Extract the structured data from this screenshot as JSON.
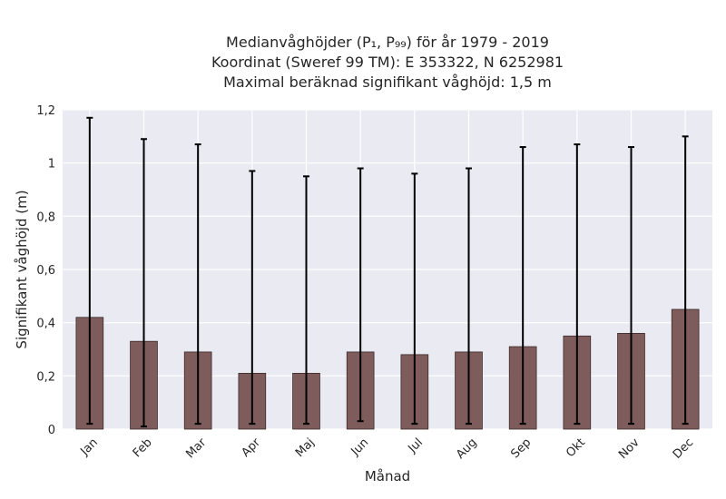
{
  "chart_data": {
    "type": "bar",
    "title_lines": [
      "Medianvåghöjder (P₁, P₉₉) för år 1979 - 2019",
      "Koordinat (Sweref 99 TM): E 353322, N 6252981",
      "Maximal beräknad signifikant våghöjd: 1,5 m"
    ],
    "xlabel": "Månad",
    "ylabel": "Signifikant våghöjd (m)",
    "categories": [
      "Jan",
      "Feb",
      "Mar",
      "Apr",
      "Maj",
      "Jun",
      "Jul",
      "Aug",
      "Sep",
      "Okt",
      "Nov",
      "Dec"
    ],
    "values": [
      0.42,
      0.33,
      0.29,
      0.21,
      0.21,
      0.29,
      0.28,
      0.29,
      0.31,
      0.35,
      0.36,
      0.45
    ],
    "error_low": [
      0.02,
      0.01,
      0.02,
      0.02,
      0.02,
      0.03,
      0.02,
      0.02,
      0.02,
      0.02,
      0.02,
      0.02
    ],
    "error_high": [
      1.17,
      1.09,
      1.07,
      0.97,
      0.95,
      0.98,
      0.96,
      0.98,
      1.06,
      1.07,
      1.06,
      1.1
    ],
    "ylim": [
      0,
      1.2
    ],
    "yticks": [
      0,
      0.2,
      0.4,
      0.6,
      0.8,
      1,
      1.2
    ],
    "ytick_labels": [
      "0",
      "0,2",
      "0,4",
      "0,6",
      "0,8",
      "1",
      "1,2"
    ],
    "grid": true,
    "colors": {
      "bar": "#7f5c5c",
      "bar_edge": "#3a2a2a",
      "error": "#000000",
      "background": "#eaeaf2",
      "grid": "#ffffff"
    }
  }
}
